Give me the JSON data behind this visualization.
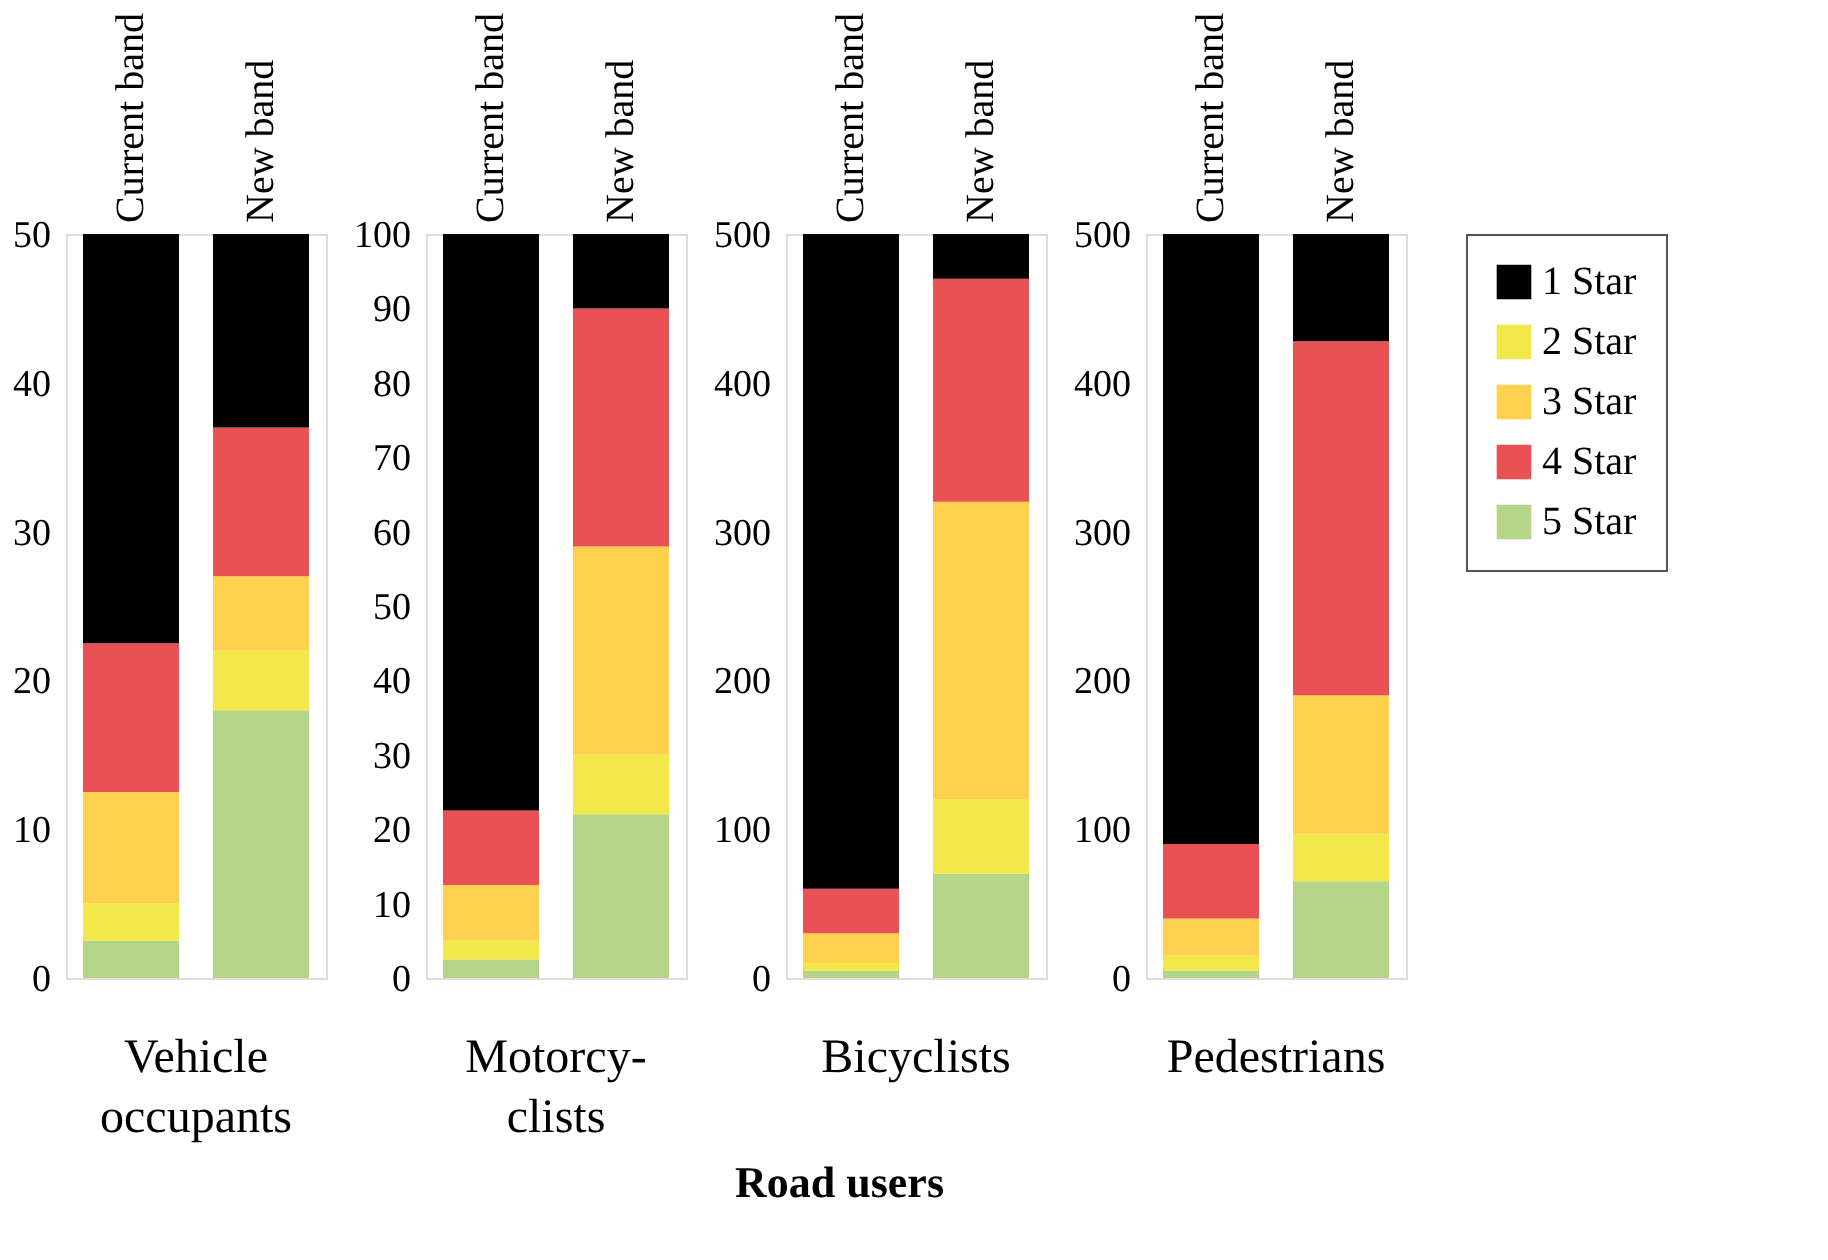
{
  "chart_data": [
    {
      "type": "bar",
      "stacked": true,
      "title": "Vehicle\noccupants",
      "categories": [
        "Current band",
        "New band"
      ],
      "ylim": [
        0,
        50
      ],
      "yticks": [
        0,
        10,
        20,
        30,
        40,
        50
      ],
      "grid": false,
      "series": [
        {
          "color": "#b4d487",
          "values": [
            2.5,
            18
          ]
        },
        {
          "color": "#f2e84a",
          "values": [
            2.5,
            4
          ]
        },
        {
          "color": "#fdd04d",
          "values": [
            7.5,
            5
          ]
        },
        {
          "color": "#e95154",
          "values": [
            10,
            10
          ]
        },
        {
          "color": "#000000",
          "values": [
            27.5,
            13
          ]
        }
      ]
    },
    {
      "type": "bar",
      "stacked": true,
      "title": "Motorcy-\nclists",
      "xlabel": "Road users",
      "categories": [
        "Current band",
        "New band"
      ],
      "ylim": [
        0,
        100
      ],
      "yticks": [
        0,
        10,
        20,
        30,
        40,
        50,
        60,
        70,
        80,
        90,
        100
      ],
      "grid": false,
      "series": [
        {
          "color": "#b4d487",
          "values": [
            2.5,
            22
          ]
        },
        {
          "color": "#f2e84a",
          "values": [
            2.5,
            8
          ]
        },
        {
          "color": "#fdd04d",
          "values": [
            7.5,
            28
          ]
        },
        {
          "color": "#e95154",
          "values": [
            10,
            32
          ]
        },
        {
          "color": "#000000",
          "values": [
            77.5,
            10
          ]
        }
      ]
    },
    {
      "type": "bar",
      "stacked": true,
      "title": "Bicyclists",
      "categories": [
        "Current band",
        "New band"
      ],
      "ylim": [
        0,
        500
      ],
      "yticks": [
        0,
        100,
        200,
        300,
        400,
        500
      ],
      "grid": false,
      "series": [
        {
          "color": "#b4d487",
          "values": [
            5,
            70
          ]
        },
        {
          "color": "#f2e84a",
          "values": [
            5,
            50
          ]
        },
        {
          "color": "#fdd04d",
          "values": [
            20,
            200
          ]
        },
        {
          "color": "#e95154",
          "values": [
            30,
            150
          ]
        },
        {
          "color": "#000000",
          "values": [
            440,
            30
          ]
        }
      ]
    },
    {
      "type": "bar",
      "stacked": true,
      "title": "Pedestrians",
      "categories": [
        "Current band",
        "New band"
      ],
      "ylim": [
        0,
        500
      ],
      "yticks": [
        0,
        100,
        200,
        300,
        400,
        500
      ],
      "grid": false,
      "legend": "right",
      "series": [
        {
          "name": "5 Star",
          "color": "#b4d487",
          "values": [
            5,
            65
          ]
        },
        {
          "name": "2 Star",
          "color": "#f2e84a",
          "values": [
            10,
            32
          ]
        },
        {
          "name": "3 Star",
          "color": "#fdd04d",
          "values": [
            25,
            93
          ]
        },
        {
          "name": "4 Star",
          "color": "#e95154",
          "values": [
            50,
            238
          ]
        },
        {
          "name": "1 Star",
          "color": "#000000",
          "values": [
            410,
            72
          ]
        }
      ]
    }
  ]
}
